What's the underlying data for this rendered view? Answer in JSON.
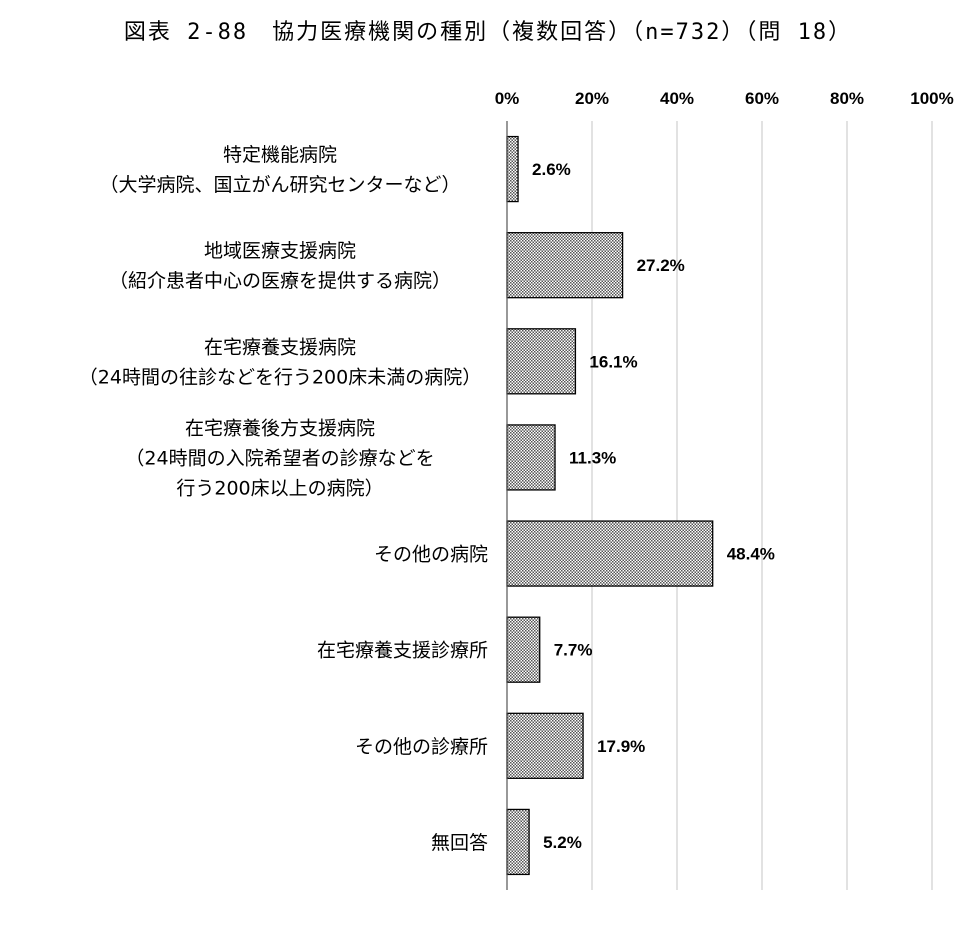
{
  "chart_data": {
    "type": "bar",
    "orientation": "horizontal",
    "title": "図表 2-88　協力医療機関の種別（複数回答）（n=732）（問 18）",
    "x_ticks": [
      "0%",
      "20%",
      "40%",
      "60%",
      "80%",
      "100%"
    ],
    "xlim": [
      0,
      100
    ],
    "grid": true,
    "categories": [
      [
        "特定機能病院",
        "（大学病院、国立がん研究センターなど）"
      ],
      [
        "地域医療支援病院",
        "（紹介患者中心の医療を提供する病院）"
      ],
      [
        "在宅療養支援病院",
        "（24時間の往診などを行う200床未満の病院）"
      ],
      [
        "在宅療養後方支援病院",
        "（24時間の入院希望者の診療などを",
        "行う200床以上の病院）"
      ],
      [
        "その他の病院"
      ],
      [
        "在宅療養支援診療所"
      ],
      [
        "その他の診療所"
      ],
      [
        "無回答"
      ]
    ],
    "values": [
      2.6,
      27.2,
      16.1,
      11.3,
      48.4,
      7.7,
      17.9,
      5.2
    ],
    "value_labels": [
      "2.6%",
      "27.2%",
      "16.1%",
      "11.3%",
      "48.4%",
      "7.7%",
      "17.9%",
      "5.2%"
    ]
  }
}
